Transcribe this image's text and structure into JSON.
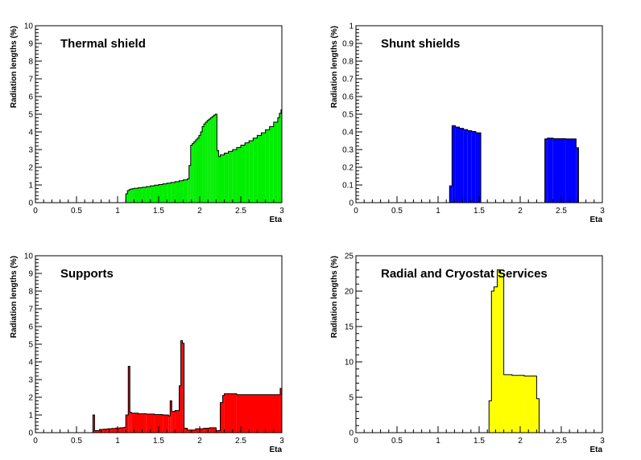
{
  "chart_data": [
    {
      "type": "histogram",
      "title": "Thermal shield",
      "xlabel": "Eta",
      "ylabel": "Radiation lengths (%)",
      "xlim": [
        0,
        3
      ],
      "ylim": [
        0,
        10
      ],
      "xticks": [
        "0",
        "0.5",
        "1",
        "1.5",
        "2",
        "2.5",
        "3"
      ],
      "yticks": [
        "0",
        "1",
        "2",
        "3",
        "4",
        "5",
        "6",
        "7",
        "8",
        "9",
        "10"
      ],
      "fill": "#00ee00",
      "bins": [
        [
          1.1,
          1.12,
          0.5
        ],
        [
          1.12,
          1.14,
          0.68
        ],
        [
          1.14,
          1.16,
          0.74
        ],
        [
          1.16,
          1.18,
          0.77
        ],
        [
          1.18,
          1.2,
          0.79
        ],
        [
          1.2,
          1.25,
          0.81
        ],
        [
          1.25,
          1.3,
          0.84
        ],
        [
          1.3,
          1.35,
          0.87
        ],
        [
          1.35,
          1.4,
          0.91
        ],
        [
          1.4,
          1.45,
          0.95
        ],
        [
          1.45,
          1.5,
          0.99
        ],
        [
          1.5,
          1.55,
          1.02
        ],
        [
          1.55,
          1.6,
          1.06
        ],
        [
          1.6,
          1.65,
          1.1
        ],
        [
          1.65,
          1.7,
          1.14
        ],
        [
          1.7,
          1.75,
          1.19
        ],
        [
          1.75,
          1.8,
          1.24
        ],
        [
          1.8,
          1.85,
          1.29
        ],
        [
          1.85,
          1.87,
          1.35
        ],
        [
          1.87,
          1.89,
          2.1
        ],
        [
          1.89,
          1.91,
          3.25
        ],
        [
          1.91,
          1.93,
          3.35
        ],
        [
          1.93,
          1.95,
          3.45
        ],
        [
          1.95,
          1.97,
          3.55
        ],
        [
          1.97,
          1.99,
          3.65
        ],
        [
          1.99,
          2.01,
          3.8
        ],
        [
          2.01,
          2.03,
          4.0
        ],
        [
          2.03,
          2.05,
          4.3
        ],
        [
          2.05,
          2.07,
          4.45
        ],
        [
          2.07,
          2.09,
          4.55
        ],
        [
          2.09,
          2.11,
          4.65
        ],
        [
          2.11,
          2.13,
          4.72
        ],
        [
          2.13,
          2.15,
          4.8
        ],
        [
          2.15,
          2.17,
          4.87
        ],
        [
          2.17,
          2.19,
          4.95
        ],
        [
          2.19,
          2.21,
          5.0
        ],
        [
          2.21,
          2.23,
          2.95
        ],
        [
          2.23,
          2.25,
          2.6
        ],
        [
          2.25,
          2.3,
          2.7
        ],
        [
          2.3,
          2.35,
          2.8
        ],
        [
          2.35,
          2.4,
          2.9
        ],
        [
          2.4,
          2.45,
          3.0
        ],
        [
          2.45,
          2.5,
          3.12
        ],
        [
          2.5,
          2.55,
          3.25
        ],
        [
          2.55,
          2.6,
          3.38
        ],
        [
          2.6,
          2.65,
          3.5
        ],
        [
          2.65,
          2.7,
          3.65
        ],
        [
          2.7,
          2.75,
          3.8
        ],
        [
          2.75,
          2.8,
          3.95
        ],
        [
          2.8,
          2.85,
          4.12
        ],
        [
          2.85,
          2.9,
          4.3
        ],
        [
          2.9,
          2.95,
          4.55
        ],
        [
          2.95,
          2.97,
          4.8
        ],
        [
          2.97,
          2.99,
          5.05
        ],
        [
          2.99,
          3.0,
          5.25
        ]
      ]
    },
    {
      "type": "histogram",
      "title": "Shunt shields",
      "xlabel": "Eta",
      "ylabel": "Radiation lengths (%)",
      "xlim": [
        0,
        3
      ],
      "ylim": [
        0,
        1
      ],
      "xticks": [
        "0",
        "0.5",
        "1",
        "1.5",
        "2",
        "2.5",
        "3"
      ],
      "yticks": [
        "0",
        "0.1",
        "0.2",
        "0.3",
        "0.4",
        "0.5",
        "0.6",
        "0.7",
        "0.8",
        "0.9",
        "1"
      ],
      "fill": "#0000ff",
      "bins": [
        [
          1.14,
          1.17,
          0.095
        ],
        [
          1.17,
          1.21,
          0.435
        ],
        [
          1.21,
          1.26,
          0.427
        ],
        [
          1.26,
          1.31,
          0.42
        ],
        [
          1.31,
          1.36,
          0.413
        ],
        [
          1.36,
          1.41,
          0.407
        ],
        [
          1.41,
          1.46,
          0.402
        ],
        [
          1.46,
          1.52,
          0.395
        ],
        [
          2.3,
          2.33,
          0.36
        ],
        [
          2.33,
          2.4,
          0.365
        ],
        [
          2.4,
          2.55,
          0.362
        ],
        [
          2.55,
          2.68,
          0.36
        ],
        [
          2.68,
          2.71,
          0.31
        ]
      ]
    },
    {
      "type": "histogram",
      "title": "Supports",
      "xlabel": "Eta",
      "ylabel": "Radiation lengths (%)",
      "xlim": [
        0,
        3
      ],
      "ylim": [
        0,
        10
      ],
      "xticks": [
        "0",
        "0.5",
        "1",
        "1.5",
        "2",
        "2.5",
        "3"
      ],
      "yticks": [
        "0",
        "1",
        "2",
        "3",
        "4",
        "5",
        "6",
        "7",
        "8",
        "9",
        "10"
      ],
      "fill": "#ff0000",
      "bins": [
        [
          0.7,
          0.72,
          1.0
        ],
        [
          0.72,
          0.78,
          0.12
        ],
        [
          0.78,
          0.83,
          0.18
        ],
        [
          0.83,
          0.88,
          0.2
        ],
        [
          0.88,
          0.93,
          0.22
        ],
        [
          0.93,
          0.98,
          0.24
        ],
        [
          0.98,
          1.03,
          0.26
        ],
        [
          1.03,
          1.08,
          0.28
        ],
        [
          1.08,
          1.1,
          0.3
        ],
        [
          1.1,
          1.13,
          1.0
        ],
        [
          1.13,
          1.15,
          3.75
        ],
        [
          1.15,
          1.17,
          1.15
        ],
        [
          1.17,
          1.25,
          1.1
        ],
        [
          1.25,
          1.35,
          1.07
        ],
        [
          1.35,
          1.45,
          1.05
        ],
        [
          1.45,
          1.55,
          1.02
        ],
        [
          1.55,
          1.62,
          1.0
        ],
        [
          1.62,
          1.64,
          0.95
        ],
        [
          1.64,
          1.66,
          1.8
        ],
        [
          1.66,
          1.7,
          1.2
        ],
        [
          1.7,
          1.75,
          1.25
        ],
        [
          1.75,
          1.77,
          2.65
        ],
        [
          1.77,
          1.79,
          5.2
        ],
        [
          1.79,
          1.81,
          5.05
        ],
        [
          1.81,
          1.85,
          0.25
        ],
        [
          1.85,
          1.95,
          0.15
        ],
        [
          1.95,
          2.05,
          0.22
        ],
        [
          2.05,
          2.12,
          0.25
        ],
        [
          2.12,
          2.2,
          0.28
        ],
        [
          2.2,
          2.25,
          0.12
        ],
        [
          2.25,
          2.28,
          1.7
        ],
        [
          2.28,
          2.3,
          2.1
        ],
        [
          2.3,
          2.45,
          2.2
        ],
        [
          2.45,
          2.98,
          2.15
        ],
        [
          2.98,
          3.0,
          2.5
        ]
      ]
    },
    {
      "type": "histogram",
      "title": "Radial and Cryostat Services",
      "xlabel": "Eta",
      "ylabel": "Radiation lengths (%)",
      "xlim": [
        0,
        3
      ],
      "ylim": [
        0,
        25
      ],
      "xticks": [
        "0",
        "0.5",
        "1",
        "1.5",
        "2",
        "2.5",
        "3"
      ],
      "yticks": [
        "0",
        "5",
        "10",
        "15",
        "20",
        "25"
      ],
      "fill": "#ffff00",
      "bins": [
        [
          1.62,
          1.65,
          4.5
        ],
        [
          1.65,
          1.68,
          20.0
        ],
        [
          1.68,
          1.72,
          20.6
        ],
        [
          1.72,
          1.76,
          23.0
        ],
        [
          1.76,
          1.8,
          22.5
        ],
        [
          1.8,
          1.9,
          8.2
        ],
        [
          1.9,
          2.05,
          8.1
        ],
        [
          2.05,
          2.2,
          8.0
        ],
        [
          2.2,
          2.23,
          4.8
        ]
      ]
    }
  ]
}
